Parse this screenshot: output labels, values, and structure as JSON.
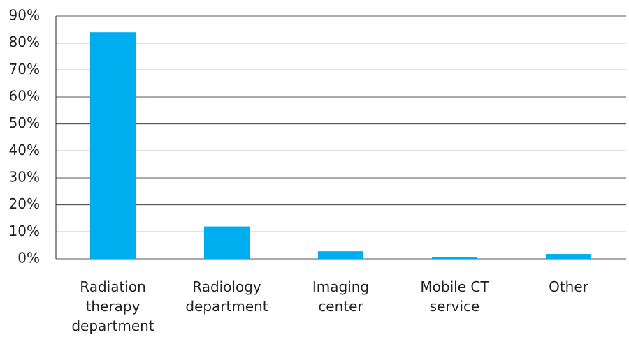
{
  "chart_data": {
    "type": "bar",
    "categories": [
      "Radiation\ntherapy\ndepartment",
      "Radiology\ndepartment",
      "Imaging\ncenter",
      "Mobile CT\nservice",
      "Other"
    ],
    "values": [
      84,
      12,
      2.8,
      0.7,
      1.8
    ],
    "color": "#00aeef",
    "ylim": [
      0,
      90
    ],
    "yticks": [
      {
        "value": 0,
        "label": "0%"
      },
      {
        "value": 10,
        "label": "10%"
      },
      {
        "value": 20,
        "label": "20%"
      },
      {
        "value": 30,
        "label": "30%"
      },
      {
        "value": 40,
        "label": "40%"
      },
      {
        "value": 50,
        "label": "50%"
      },
      {
        "value": 60,
        "label": "60%"
      },
      {
        "value": 70,
        "label": "70%"
      },
      {
        "value": 80,
        "label": "80%"
      },
      {
        "value": 90,
        "label": "90%"
      }
    ],
    "grid": true
  }
}
